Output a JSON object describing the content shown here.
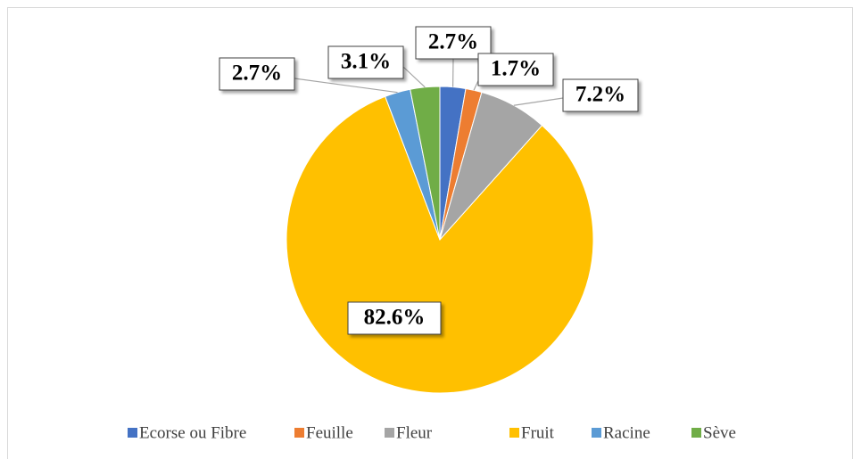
{
  "chart_data": {
    "type": "pie",
    "categories": [
      "Ecorse ou Fibre",
      "Feuille",
      "Fleur",
      "Fruit",
      "Racine",
      "Sève"
    ],
    "values": [
      2.7,
      1.7,
      7.2,
      82.6,
      2.7,
      3.1
    ],
    "value_labels": [
      "2.7%",
      "1.7%",
      "7.2%",
      "82.6%",
      "2.7%",
      "3.1%"
    ],
    "colors": [
      "#4472c4",
      "#ed7d31",
      "#a5a5a5",
      "#ffc000",
      "#5b9bd5",
      "#70ad47"
    ],
    "legend": "bottom"
  }
}
